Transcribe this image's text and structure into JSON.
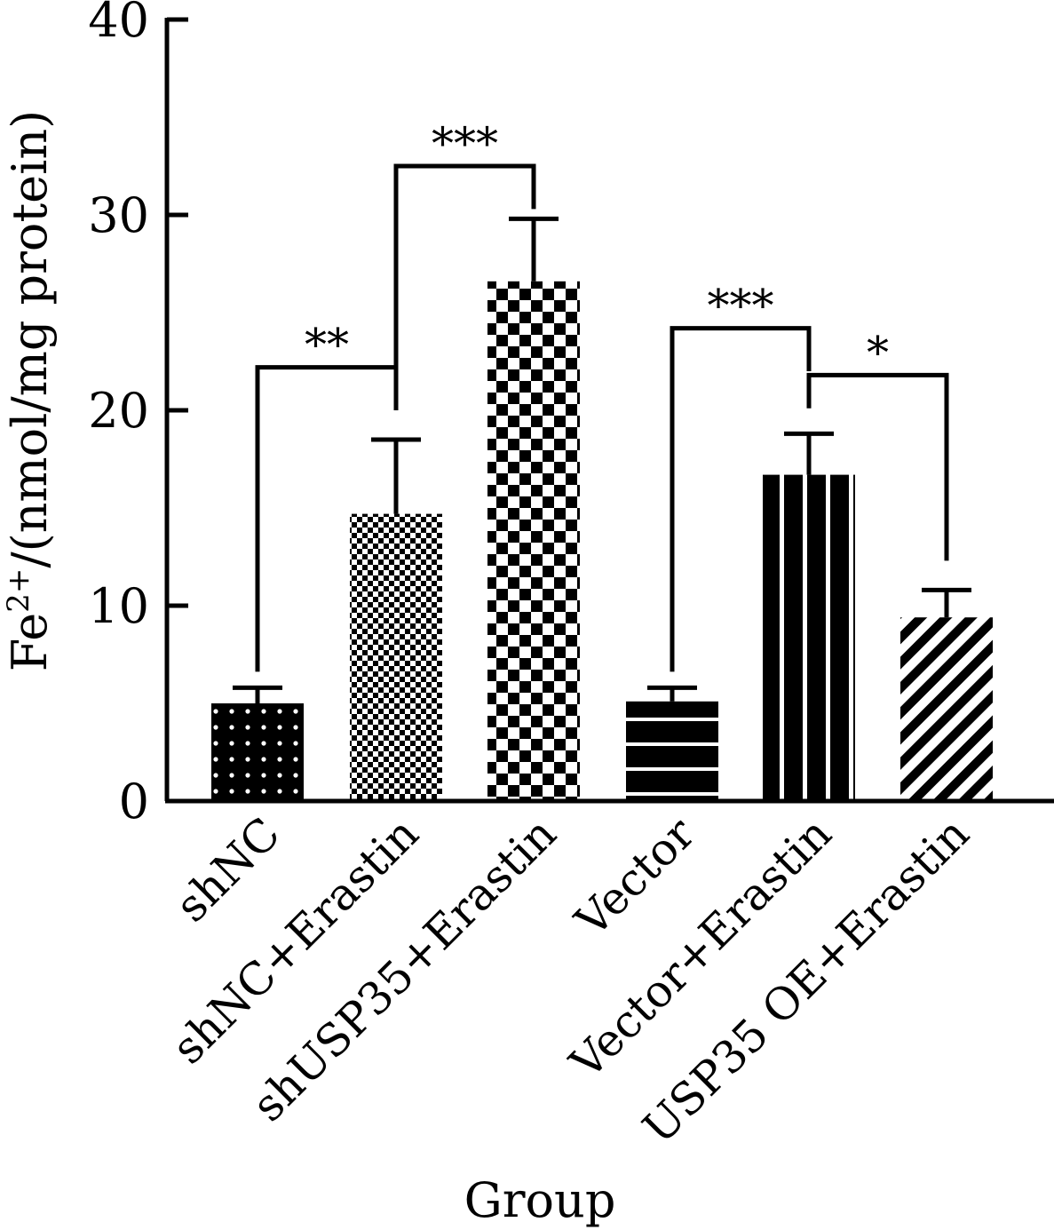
{
  "chart_data": {
    "type": "bar",
    "title": "",
    "xlabel": "Group",
    "ylabel": {
      "prefix": "Fe",
      "superscript": "2+",
      "suffix": "/(nmol/mg protein)"
    },
    "ylim": [
      0,
      40
    ],
    "yticks": [
      "0",
      "10",
      "20",
      "30",
      "40"
    ],
    "grid": false,
    "categories": [
      "shNC",
      "shNC+Erastin",
      "shUSP35+Erastin",
      "Vector",
      "Vector+Erastin",
      "USP35 OE+Erastin"
    ],
    "values": [
      5.0,
      14.7,
      26.6,
      5.1,
      16.7,
      9.4
    ],
    "errors": [
      0.8,
      3.8,
      3.2,
      0.7,
      2.1,
      1.4
    ],
    "patterns": [
      "dots",
      "fine-check",
      "coarse-check",
      "horizontal-stripes",
      "vertical-stripes",
      "diagonal-stripes"
    ],
    "significance": [
      {
        "from": 0,
        "to": 1,
        "label": "**"
      },
      {
        "from": 1,
        "to": 2,
        "label": "***"
      },
      {
        "from": 3,
        "to": 4,
        "label": "***"
      },
      {
        "from": 4,
        "to": 5,
        "label": "*"
      }
    ]
  }
}
